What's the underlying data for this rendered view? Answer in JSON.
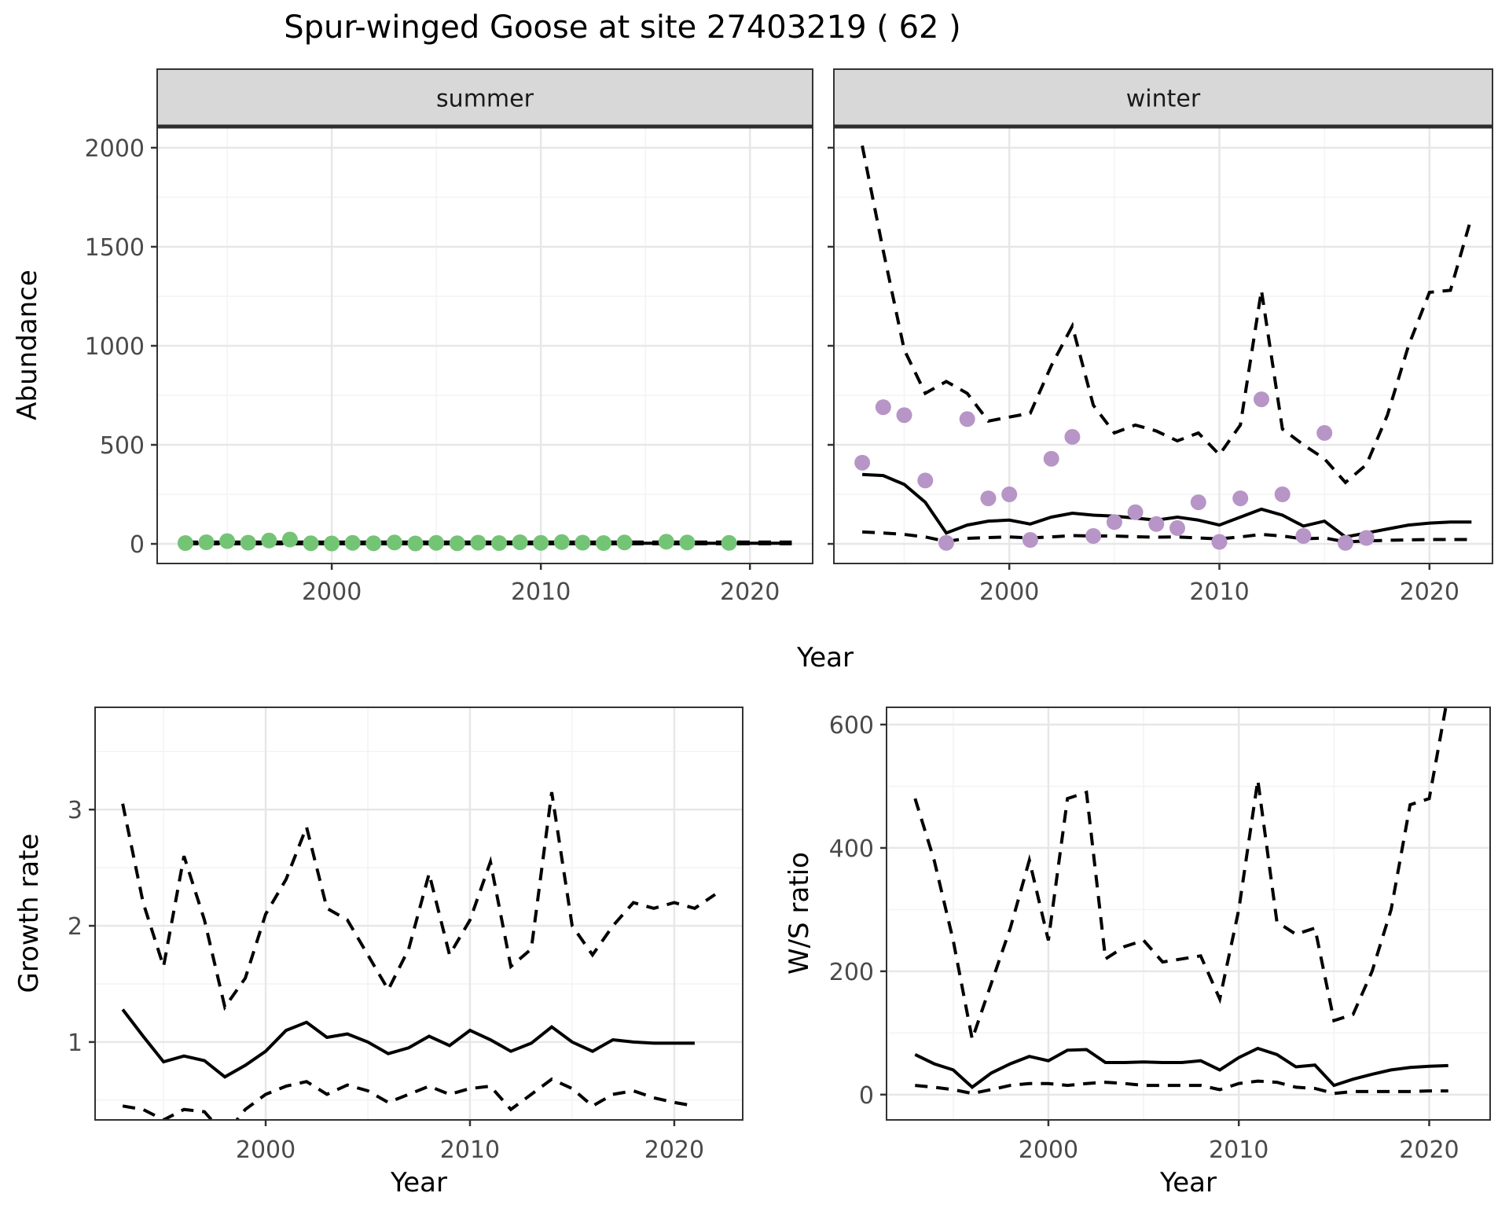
{
  "title": "Spur-winged Goose at site 27403219 ( 62 )",
  "colors": {
    "summer_obs": "#74c476",
    "winter_obs": "#b795c7",
    "line": "#000000",
    "grid_major": "#e7e7e7",
    "grid_minor": "#f3f3f3",
    "strip_bg": "#d8d8d8",
    "panel_border": "#333333",
    "axis_text": "#4a4a4a",
    "axis_title": "#000000"
  },
  "chart_data": [
    {
      "id": "abundance_summer",
      "type": "line",
      "facet_label": "summer",
      "ylabel": "Abundance",
      "xlabel": "Year",
      "xlim": [
        1991.65,
        2023.0
      ],
      "ylim": [
        -99,
        2107
      ],
      "xticks": [
        2000,
        2010,
        2020
      ],
      "xminor": [
        1995,
        2005,
        2015
      ],
      "yticks": [
        0,
        500,
        1000,
        1500,
        2000
      ],
      "yminor": [
        250,
        750,
        1250,
        1750
      ],
      "grid": true,
      "legend": "none",
      "series": [
        {
          "name": "observed",
          "style": "points",
          "color_key": "summer_obs",
          "x": [
            1993,
            1994,
            1995,
            1996,
            1997,
            1998,
            1999,
            2000,
            2001,
            2002,
            2003,
            2004,
            2005,
            2006,
            2007,
            2008,
            2009,
            2010,
            2011,
            2012,
            2013,
            2014,
            2016,
            2017,
            2019
          ],
          "y": [
            4,
            8,
            14,
            6,
            17,
            22,
            3,
            2,
            5,
            3,
            7,
            2,
            5,
            3,
            6,
            4,
            8,
            5,
            9,
            6,
            4,
            7,
            11,
            7,
            5
          ]
        },
        {
          "name": "fitted_mean",
          "style": "solid",
          "color_key": "line",
          "x": [
            1993,
            1994,
            1995,
            1996,
            1997,
            1998,
            1999,
            2000,
            2001,
            2002,
            2003,
            2004,
            2005,
            2006,
            2007,
            2008,
            2009,
            2010,
            2011,
            2012,
            2013,
            2014,
            2015,
            2016,
            2017,
            2018,
            2019,
            2020,
            2021,
            2022
          ],
          "y": [
            3,
            3,
            3,
            3,
            3,
            3,
            3,
            3,
            3,
            3,
            3,
            3,
            3,
            3,
            3,
            3,
            3,
            3,
            3,
            3,
            3,
            3,
            3,
            3,
            3,
            3,
            3,
            3,
            3,
            3
          ]
        },
        {
          "name": "ci_upper",
          "style": "dashed",
          "color_key": "line",
          "x": [
            1993,
            1994,
            1995,
            1996,
            1997,
            1998,
            1999,
            2000,
            2001,
            2002,
            2003,
            2004,
            2005,
            2006,
            2007,
            2008,
            2009,
            2010,
            2011,
            2012,
            2013,
            2014,
            2015,
            2016,
            2017,
            2018,
            2019,
            2020,
            2021,
            2022
          ],
          "y": [
            9,
            9,
            9,
            9,
            9,
            9,
            9,
            9,
            9,
            9,
            9,
            9,
            9,
            9,
            9,
            9,
            9,
            9,
            9,
            9,
            9,
            9,
            9,
            9,
            9,
            9,
            9,
            9,
            9,
            9
          ]
        },
        {
          "name": "ci_lower",
          "style": "dashed",
          "color_key": "line",
          "x": [
            1993,
            1994,
            1995,
            1996,
            1997,
            1998,
            1999,
            2000,
            2001,
            2002,
            2003,
            2004,
            2005,
            2006,
            2007,
            2008,
            2009,
            2010,
            2011,
            2012,
            2013,
            2014,
            2015,
            2016,
            2017,
            2018,
            2019,
            2020,
            2021,
            2022
          ],
          "y": [
            0.5,
            0.5,
            0.5,
            0.5,
            0.5,
            0.5,
            0.5,
            0.5,
            0.5,
            0.5,
            0.5,
            0.5,
            0.5,
            0.5,
            0.5,
            0.5,
            0.5,
            0.5,
            0.5,
            0.5,
            0.5,
            0.5,
            0.5,
            0.5,
            0.5,
            0.5,
            0.5,
            0.5,
            0.5,
            0.5
          ]
        }
      ]
    },
    {
      "id": "abundance_winter",
      "type": "line",
      "facet_label": "winter",
      "ylabel": "Abundance",
      "xlabel": "Year",
      "xlim": [
        1991.65,
        2023.0
      ],
      "ylim": [
        -99,
        2107
      ],
      "xticks": [
        2000,
        2010,
        2020
      ],
      "xminor": [
        1995,
        2005,
        2015
      ],
      "yticks": [
        0,
        500,
        1000,
        1500,
        2000
      ],
      "yminor": [
        250,
        750,
        1250,
        1750
      ],
      "grid": true,
      "legend": "none",
      "series": [
        {
          "name": "observed",
          "style": "points",
          "color_key": "winter_obs",
          "x": [
            1993,
            1994,
            1995,
            1996,
            1997,
            1998,
            1999,
            2000,
            2001,
            2002,
            2003,
            2004,
            2005,
            2006,
            2007,
            2008,
            2009,
            2010,
            2011,
            2012,
            2013,
            2014,
            2015,
            2016,
            2017
          ],
          "y": [
            410,
            690,
            650,
            320,
            5,
            630,
            230,
            250,
            20,
            430,
            540,
            40,
            110,
            160,
            100,
            80,
            210,
            10,
            230,
            730,
            250,
            40,
            560,
            5,
            30
          ]
        },
        {
          "name": "fitted_mean",
          "style": "solid",
          "color_key": "line",
          "x": [
            1993,
            1994,
            1995,
            1996,
            1997,
            1998,
            1999,
            2000,
            2001,
            2002,
            2003,
            2004,
            2005,
            2006,
            2007,
            2008,
            2009,
            2010,
            2011,
            2012,
            2013,
            2014,
            2015,
            2016,
            2017,
            2018,
            2019,
            2020,
            2021,
            2022
          ],
          "y": [
            350,
            345,
            300,
            210,
            55,
            95,
            115,
            120,
            100,
            135,
            155,
            145,
            140,
            130,
            120,
            135,
            120,
            95,
            135,
            175,
            145,
            90,
            115,
            35,
            55,
            75,
            95,
            105,
            110,
            110
          ]
        },
        {
          "name": "ci_upper",
          "style": "dashed",
          "color_key": "line",
          "x": [
            1993,
            1994,
            1995,
            1996,
            1997,
            1998,
            1999,
            2000,
            2001,
            2002,
            2003,
            2004,
            2005,
            2006,
            2007,
            2008,
            2009,
            2010,
            2011,
            2012,
            2013,
            2014,
            2015,
            2016,
            2017,
            2018,
            2019,
            2020,
            2021,
            2022
          ],
          "y": [
            2010,
            1480,
            980,
            760,
            820,
            760,
            620,
            640,
            660,
            900,
            1100,
            700,
            560,
            600,
            570,
            520,
            560,
            450,
            600,
            1280,
            580,
            500,
            430,
            310,
            400,
            650,
            1000,
            1270,
            1280,
            1650
          ]
        },
        {
          "name": "ci_lower",
          "style": "dashed",
          "color_key": "line",
          "x": [
            1993,
            1994,
            1995,
            1996,
            1997,
            1998,
            1999,
            2000,
            2001,
            2002,
            2003,
            2004,
            2005,
            2006,
            2007,
            2008,
            2009,
            2010,
            2011,
            2012,
            2013,
            2014,
            2015,
            2016,
            2017,
            2018,
            2019,
            2020,
            2021,
            2022
          ],
          "y": [
            60,
            55,
            48,
            35,
            12,
            28,
            32,
            35,
            30,
            35,
            42,
            40,
            40,
            36,
            34,
            35,
            30,
            25,
            35,
            48,
            40,
            25,
            30,
            10,
            15,
            18,
            20,
            22,
            22,
            22
          ]
        }
      ]
    },
    {
      "id": "growth_rate",
      "type": "line",
      "facet_label": "",
      "ylabel": "Growth rate",
      "xlabel": "Year",
      "xlim": [
        1991.65,
        2023.35
      ],
      "ylim": [
        0.33,
        3.88
      ],
      "xticks": [
        2000,
        2010,
        2020
      ],
      "xminor": [
        1995,
        2005,
        2015
      ],
      "yticks": [
        1,
        2,
        3
      ],
      "yminor": [
        0.5,
        1.5,
        2.5,
        3.5
      ],
      "grid": true,
      "legend": "none",
      "series": [
        {
          "name": "growth_mean",
          "style": "solid",
          "color_key": "line",
          "x": [
            1993,
            1994,
            1995,
            1996,
            1997,
            1998,
            1999,
            2000,
            2001,
            2002,
            2003,
            2004,
            2005,
            2006,
            2007,
            2008,
            2009,
            2010,
            2011,
            2012,
            2013,
            2014,
            2015,
            2016,
            2017,
            2018,
            2019,
            2020,
            2021
          ],
          "y": [
            1.28,
            1.05,
            0.83,
            0.88,
            0.84,
            0.7,
            0.8,
            0.92,
            1.1,
            1.17,
            1.04,
            1.07,
            1.0,
            0.9,
            0.95,
            1.05,
            0.97,
            1.1,
            1.02,
            0.92,
            0.99,
            1.13,
            1.0,
            0.92,
            1.02,
            1.0,
            0.99,
            0.99,
            0.99
          ]
        },
        {
          "name": "ci_upper",
          "style": "dashed",
          "color_key": "line",
          "x": [
            1993,
            1994,
            1995,
            1996,
            1997,
            1998,
            1999,
            2000,
            2001,
            2002,
            2003,
            2004,
            2005,
            2006,
            2007,
            2008,
            2009,
            2010,
            2011,
            2012,
            2013,
            2014,
            2015,
            2016,
            2017,
            2018,
            2019,
            2020,
            2021,
            2022
          ],
          "y": [
            3.05,
            2.2,
            1.65,
            2.6,
            2.05,
            1.3,
            1.55,
            2.1,
            2.4,
            2.85,
            2.15,
            2.05,
            1.75,
            1.45,
            1.8,
            2.45,
            1.75,
            2.05,
            2.55,
            1.65,
            1.8,
            3.15,
            2.0,
            1.75,
            2.0,
            2.2,
            2.15,
            2.2,
            2.15,
            2.27
          ]
        },
        {
          "name": "ci_lower",
          "style": "dashed",
          "color_key": "line",
          "x": [
            1993,
            1994,
            1995,
            1996,
            1997,
            1998,
            1999,
            2000,
            2001,
            2002,
            2003,
            2004,
            2005,
            2006,
            2007,
            2008,
            2009,
            2010,
            2011,
            2012,
            2013,
            2014,
            2015,
            2016,
            2017,
            2018,
            2019,
            2020,
            2021
          ],
          "y": [
            0.45,
            0.42,
            0.33,
            0.42,
            0.4,
            0.2,
            0.42,
            0.55,
            0.62,
            0.66,
            0.55,
            0.63,
            0.58,
            0.48,
            0.55,
            0.62,
            0.55,
            0.6,
            0.62,
            0.42,
            0.55,
            0.68,
            0.6,
            0.45,
            0.55,
            0.58,
            0.52,
            0.48,
            0.45
          ]
        }
      ]
    },
    {
      "id": "ws_ratio",
      "type": "line",
      "facet_label": "",
      "ylabel": "W/S ratio",
      "xlabel": "Year",
      "xlim": [
        1991.5,
        2023.2
      ],
      "ylim": [
        -41,
        628
      ],
      "xticks": [
        2000,
        2010,
        2020
      ],
      "xminor": [
        1995,
        2005,
        2015
      ],
      "yticks": [
        0,
        200,
        400,
        600
      ],
      "yminor": [
        100,
        300,
        500
      ],
      "grid": true,
      "legend": "none",
      "series": [
        {
          "name": "ws_mean",
          "style": "solid",
          "color_key": "line",
          "x": [
            1993,
            1994,
            1995,
            1996,
            1997,
            1998,
            1999,
            2000,
            2001,
            2002,
            2003,
            2004,
            2005,
            2006,
            2007,
            2008,
            2009,
            2010,
            2011,
            2012,
            2013,
            2014,
            2015,
            2016,
            2017,
            2018,
            2019,
            2020,
            2021
          ],
          "y": [
            65,
            50,
            40,
            12,
            35,
            50,
            62,
            55,
            72,
            73,
            52,
            52,
            53,
            52,
            52,
            55,
            40,
            60,
            75,
            65,
            45,
            48,
            15,
            25,
            33,
            40,
            44,
            46,
            47
          ]
        },
        {
          "name": "ci_upper",
          "style": "dashed",
          "color_key": "line",
          "x": [
            1993,
            1994,
            1995,
            1996,
            1997,
            1998,
            1999,
            2000,
            2001,
            2002,
            2003,
            2004,
            2005,
            2006,
            2007,
            2008,
            2009,
            2010,
            2011,
            2012,
            2013,
            2014,
            2015,
            2016,
            2017,
            2018,
            2019,
            2020,
            2021
          ],
          "y": [
            480,
            380,
            250,
            90,
            180,
            270,
            380,
            250,
            480,
            490,
            220,
            240,
            250,
            215,
            220,
            225,
            155,
            300,
            510,
            280,
            260,
            270,
            120,
            130,
            200,
            300,
            470,
            480,
            650
          ]
        },
        {
          "name": "ci_lower",
          "style": "dashed",
          "color_key": "line",
          "x": [
            1993,
            1994,
            1995,
            1996,
            1997,
            1998,
            1999,
            2000,
            2001,
            2002,
            2003,
            2004,
            2005,
            2006,
            2007,
            2008,
            2009,
            2010,
            2011,
            2012,
            2013,
            2014,
            2015,
            2016,
            2017,
            2018,
            2019,
            2020,
            2021
          ],
          "y": [
            15,
            12,
            8,
            2,
            8,
            15,
            18,
            18,
            15,
            18,
            20,
            18,
            15,
            15,
            15,
            15,
            8,
            18,
            22,
            20,
            12,
            10,
            2,
            5,
            5,
            5,
            5,
            6,
            6
          ]
        }
      ]
    }
  ]
}
